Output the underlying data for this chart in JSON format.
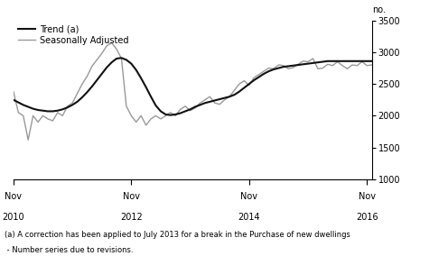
{
  "trend_x": [
    0,
    1,
    2,
    3,
    4,
    5,
    6,
    7,
    8,
    9,
    10,
    11,
    12,
    13,
    14,
    15,
    16,
    17,
    18,
    19,
    20,
    21,
    22,
    23,
    24,
    25,
    26,
    27,
    28,
    29,
    30,
    31,
    32,
    33,
    34,
    35,
    36,
    37,
    38,
    39,
    40,
    41,
    42,
    43,
    44,
    45,
    46,
    47,
    48,
    49,
    50,
    51,
    52,
    53,
    54,
    55,
    56,
    57,
    58,
    59,
    60,
    61,
    62,
    63,
    64,
    65,
    66,
    67,
    68,
    69,
    70,
    71,
    72,
    73
  ],
  "trend_y": [
    2250,
    2210,
    2170,
    2140,
    2110,
    2090,
    2080,
    2070,
    2070,
    2080,
    2100,
    2130,
    2170,
    2220,
    2290,
    2370,
    2460,
    2560,
    2660,
    2760,
    2840,
    2900,
    2910,
    2880,
    2820,
    2720,
    2590,
    2450,
    2300,
    2160,
    2070,
    2020,
    2010,
    2020,
    2040,
    2070,
    2100,
    2140,
    2170,
    2200,
    2220,
    2240,
    2260,
    2280,
    2300,
    2330,
    2380,
    2440,
    2500,
    2560,
    2610,
    2660,
    2700,
    2730,
    2750,
    2770,
    2780,
    2790,
    2800,
    2810,
    2820,
    2830,
    2840,
    2850,
    2860,
    2860,
    2860,
    2860,
    2860,
    2860,
    2860,
    2860,
    2860,
    2860
  ],
  "sa_x": [
    0,
    1,
    2,
    3,
    4,
    5,
    6,
    7,
    8,
    9,
    10,
    11,
    12,
    13,
    14,
    15,
    16,
    17,
    18,
    19,
    20,
    21,
    22,
    23,
    24,
    25,
    26,
    27,
    28,
    29,
    30,
    31,
    32,
    33,
    34,
    35,
    36,
    37,
    38,
    39,
    40,
    41,
    42,
    43,
    44,
    45,
    46,
    47,
    48,
    49,
    50,
    51,
    52,
    53,
    54,
    55,
    56,
    57,
    58,
    59,
    60,
    61,
    62,
    63,
    64,
    65,
    66,
    67,
    68,
    69,
    70,
    71,
    72,
    73
  ],
  "sa_y": [
    2380,
    2050,
    2000,
    1620,
    2000,
    1900,
    2000,
    1950,
    1920,
    2050,
    2000,
    2150,
    2200,
    2350,
    2500,
    2620,
    2780,
    2880,
    2980,
    3100,
    3150,
    3050,
    2900,
    2150,
    2000,
    1900,
    2000,
    1850,
    1950,
    2000,
    1950,
    2000,
    2050,
    2000,
    2100,
    2150,
    2080,
    2120,
    2200,
    2250,
    2300,
    2200,
    2180,
    2250,
    2300,
    2400,
    2500,
    2550,
    2480,
    2600,
    2650,
    2700,
    2750,
    2740,
    2800,
    2790,
    2740,
    2760,
    2810,
    2860,
    2850,
    2900,
    2740,
    2750,
    2810,
    2790,
    2850,
    2790,
    2740,
    2800,
    2790,
    2850,
    2790,
    2800
  ],
  "trend_color": "#111111",
  "sa_color": "#999999",
  "ylim": [
    1000,
    3500
  ],
  "yticks": [
    1000,
    1500,
    2000,
    2500,
    3000,
    3500
  ],
  "xlim": [
    0,
    73
  ],
  "xtick_positions": [
    0,
    24,
    48,
    72
  ],
  "xtick_top_labels": [
    "Nov",
    "Nov",
    "Nov",
    "Nov"
  ],
  "xtick_bot_labels": [
    "2010",
    "2012",
    "2014",
    "2016"
  ],
  "ylabel": "no.",
  "legend_trend": "Trend (a)",
  "legend_sa": "Seasonally Adjusted",
  "footnote1": "(a) A correction has been applied to July 2013 for a break in the Purchase of new dwellings",
  "footnote2": " - Number series due to revisions.",
  "trend_linewidth": 1.5,
  "sa_linewidth": 1.0
}
